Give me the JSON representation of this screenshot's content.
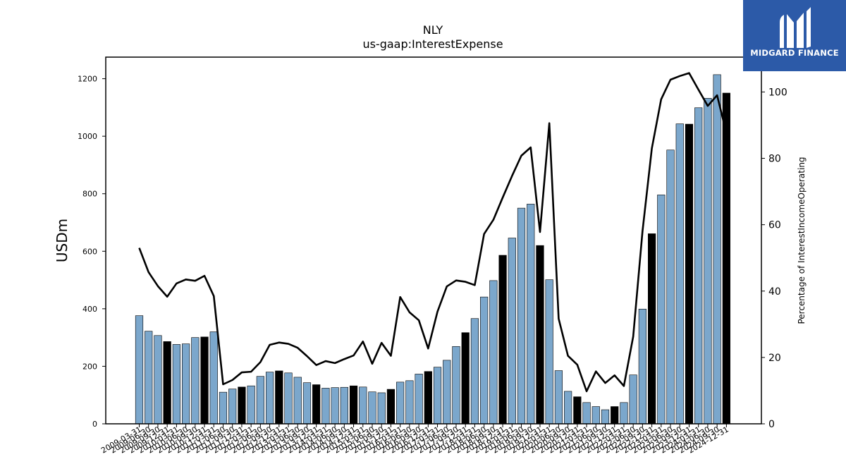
{
  "chart_data": {
    "type": "bar+line",
    "title": "NLY",
    "subtitle": "us-gaap:InterestExpense",
    "ylabel": "USDm",
    "y2label": "Percentage of InterestIncomeOperating",
    "ylim": [
      0,
      1275
    ],
    "y2lim": [
      0,
      110.5
    ],
    "yticks": [
      0,
      200,
      400,
      600,
      800,
      1000,
      1200
    ],
    "y2ticks": [
      0,
      20,
      40,
      60,
      80,
      100
    ],
    "grid": false,
    "bar_colors": {
      "default": "#7ba7cc",
      "highlight": "#000000"
    },
    "line_color": "#000000",
    "categories": [
      "2009-03-31",
      "2009-06-30",
      "2009-09-30",
      "2009-12-31",
      "2010-03-31",
      "2010-06-30",
      "2010-09-30",
      "2010-12-31",
      "2011-03-31",
      "2011-06-30",
      "2011-09-30",
      "2011-12-31",
      "2012-03-31",
      "2012-06-30",
      "2012-09-30",
      "2012-12-31",
      "2013-03-31",
      "2013-06-30",
      "2013-09-30",
      "2013-12-31",
      "2014-03-31",
      "2014-06-30",
      "2014-09-30",
      "2014-12-31",
      "2015-03-31",
      "2015-06-30",
      "2015-09-30",
      "2015-12-31",
      "2016-03-31",
      "2016-06-30",
      "2016-09-30",
      "2016-12-31",
      "2017-03-31",
      "2017-06-30",
      "2017-09-30",
      "2017-12-31",
      "2018-03-31",
      "2018-06-30",
      "2018-09-30",
      "2018-12-31",
      "2019-03-31",
      "2019-06-30",
      "2019-09-30",
      "2019-12-31",
      "2020-03-31",
      "2020-06-30",
      "2020-09-30",
      "2020-12-31",
      "2021-03-31",
      "2021-06-30",
      "2021-09-30",
      "2021-12-31",
      "2022-03-31",
      "2022-06-30",
      "2022-09-30",
      "2022-12-31",
      "2023-03-31",
      "2023-06-30",
      "2023-09-30",
      "2023-12-31",
      "2024-03-31",
      "2024-06-30",
      "2024-09-30",
      "2024-12-31"
    ],
    "series": [
      {
        "kind": "bar",
        "axis": "left",
        "values": [
          376,
          322,
          307,
          286,
          276,
          278,
          300,
          302,
          320,
          110,
          121,
          128,
          132,
          165,
          180,
          184,
          177,
          162,
          143,
          136,
          124,
          126,
          127,
          132,
          128,
          111,
          108,
          120,
          145,
          150,
          173,
          182,
          197,
          221,
          269,
          317,
          366,
          441,
          498,
          586,
          646,
          750,
          764,
          620,
          501,
          185,
          113,
          94,
          74,
          60,
          49,
          60,
          74,
          170,
          399,
          661,
          796,
          952,
          1043,
          1042,
          1099,
          1132,
          1214,
          1150
        ],
        "highlight": [
          false,
          false,
          false,
          true,
          false,
          false,
          false,
          true,
          false,
          false,
          false,
          true,
          false,
          false,
          false,
          true,
          false,
          false,
          false,
          true,
          false,
          false,
          false,
          true,
          false,
          false,
          false,
          true,
          false,
          false,
          false,
          true,
          false,
          false,
          false,
          true,
          false,
          false,
          false,
          true,
          false,
          false,
          false,
          true,
          false,
          false,
          false,
          true,
          false,
          false,
          false,
          true,
          false,
          false,
          false,
          true,
          false,
          false,
          false,
          true,
          false,
          false,
          false,
          true
        ]
      },
      {
        "kind": "line",
        "axis": "right",
        "values": [
          53,
          45.7,
          41.5,
          38.3,
          42.3,
          43.5,
          43.1,
          44.6,
          38.5,
          11.9,
          13.2,
          15.5,
          15.7,
          18.6,
          23.8,
          24.5,
          24.1,
          22.9,
          20.4,
          17.7,
          18.9,
          18.3,
          19.5,
          20.6,
          24.8,
          18.1,
          24.4,
          20.5,
          38.2,
          33.6,
          31.2,
          22.7,
          33.8,
          41.4,
          43.2,
          42.8,
          41.8,
          57.2,
          61.5,
          68.2,
          74.7,
          80.8,
          83.3,
          57.8,
          90.6,
          31.7,
          20.5,
          17.8,
          9.8,
          15.8,
          12.3,
          14.6,
          11.4,
          26.3,
          58.1,
          83,
          97.8,
          103.7,
          104.8,
          105.7,
          100.7,
          95.8,
          99,
          87.6
        ]
      }
    ]
  },
  "logo": {
    "text": "MIDGARD FINANCE",
    "icon": "midgard-finance-logo-icon",
    "bg": "#2c5aa8"
  }
}
